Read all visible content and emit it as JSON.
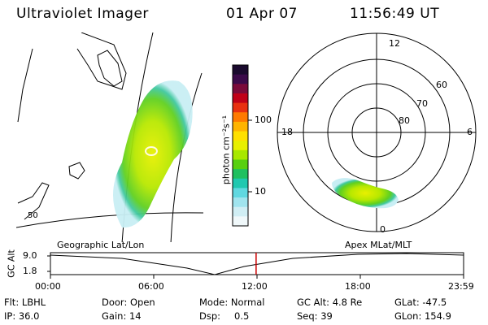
{
  "header": {
    "title": "Ultraviolet Imager",
    "date": "01 Apr 07",
    "time": "11:56:49 UT"
  },
  "geo_panel": {
    "label": "Geographic Lat/Lon",
    "lat_label": "50"
  },
  "colorbar": {
    "unit_label": "photon cm⁻²s⁻¹",
    "ticks": [
      "100",
      "10"
    ],
    "colors": [
      "#1a0a2e",
      "#3b0a4a",
      "#7a0a3a",
      "#c00018",
      "#e83010",
      "#ff7a00",
      "#ffb400",
      "#ffe000",
      "#e8f000",
      "#a8e800",
      "#58d010",
      "#20c060",
      "#20c8b0",
      "#60d8e0",
      "#a0e4ee",
      "#d0eef4",
      "#f0f8fa"
    ]
  },
  "polar_panel": {
    "label": "Apex MLat/MLT",
    "mlt_labels": [
      "12",
      "18",
      "6",
      "0"
    ],
    "lat_labels": [
      "60",
      "70",
      "80"
    ]
  },
  "timeline": {
    "y_label": "GC Alt",
    "y_ticks": [
      "9.0",
      "1.8"
    ],
    "x_ticks": [
      "00:00",
      "06:00",
      "12:00",
      "18:00",
      "23:59"
    ],
    "current_fraction": 0.4978,
    "marker_color": "#cc0000"
  },
  "info": {
    "flt": "Flt: LBHL",
    "door": "Door: Open",
    "mode": "Mode: Normal",
    "gc_alt": "GC Alt: 4.8 Re",
    "glat": "GLat: -47.5",
    "ip": "IP: 36.0",
    "gain": "Gain: 14",
    "dsp_label": "Dsp:",
    "dsp_value": "0.5",
    "seq": "Seq: 39",
    "glon": "GLon: 154.9"
  }
}
